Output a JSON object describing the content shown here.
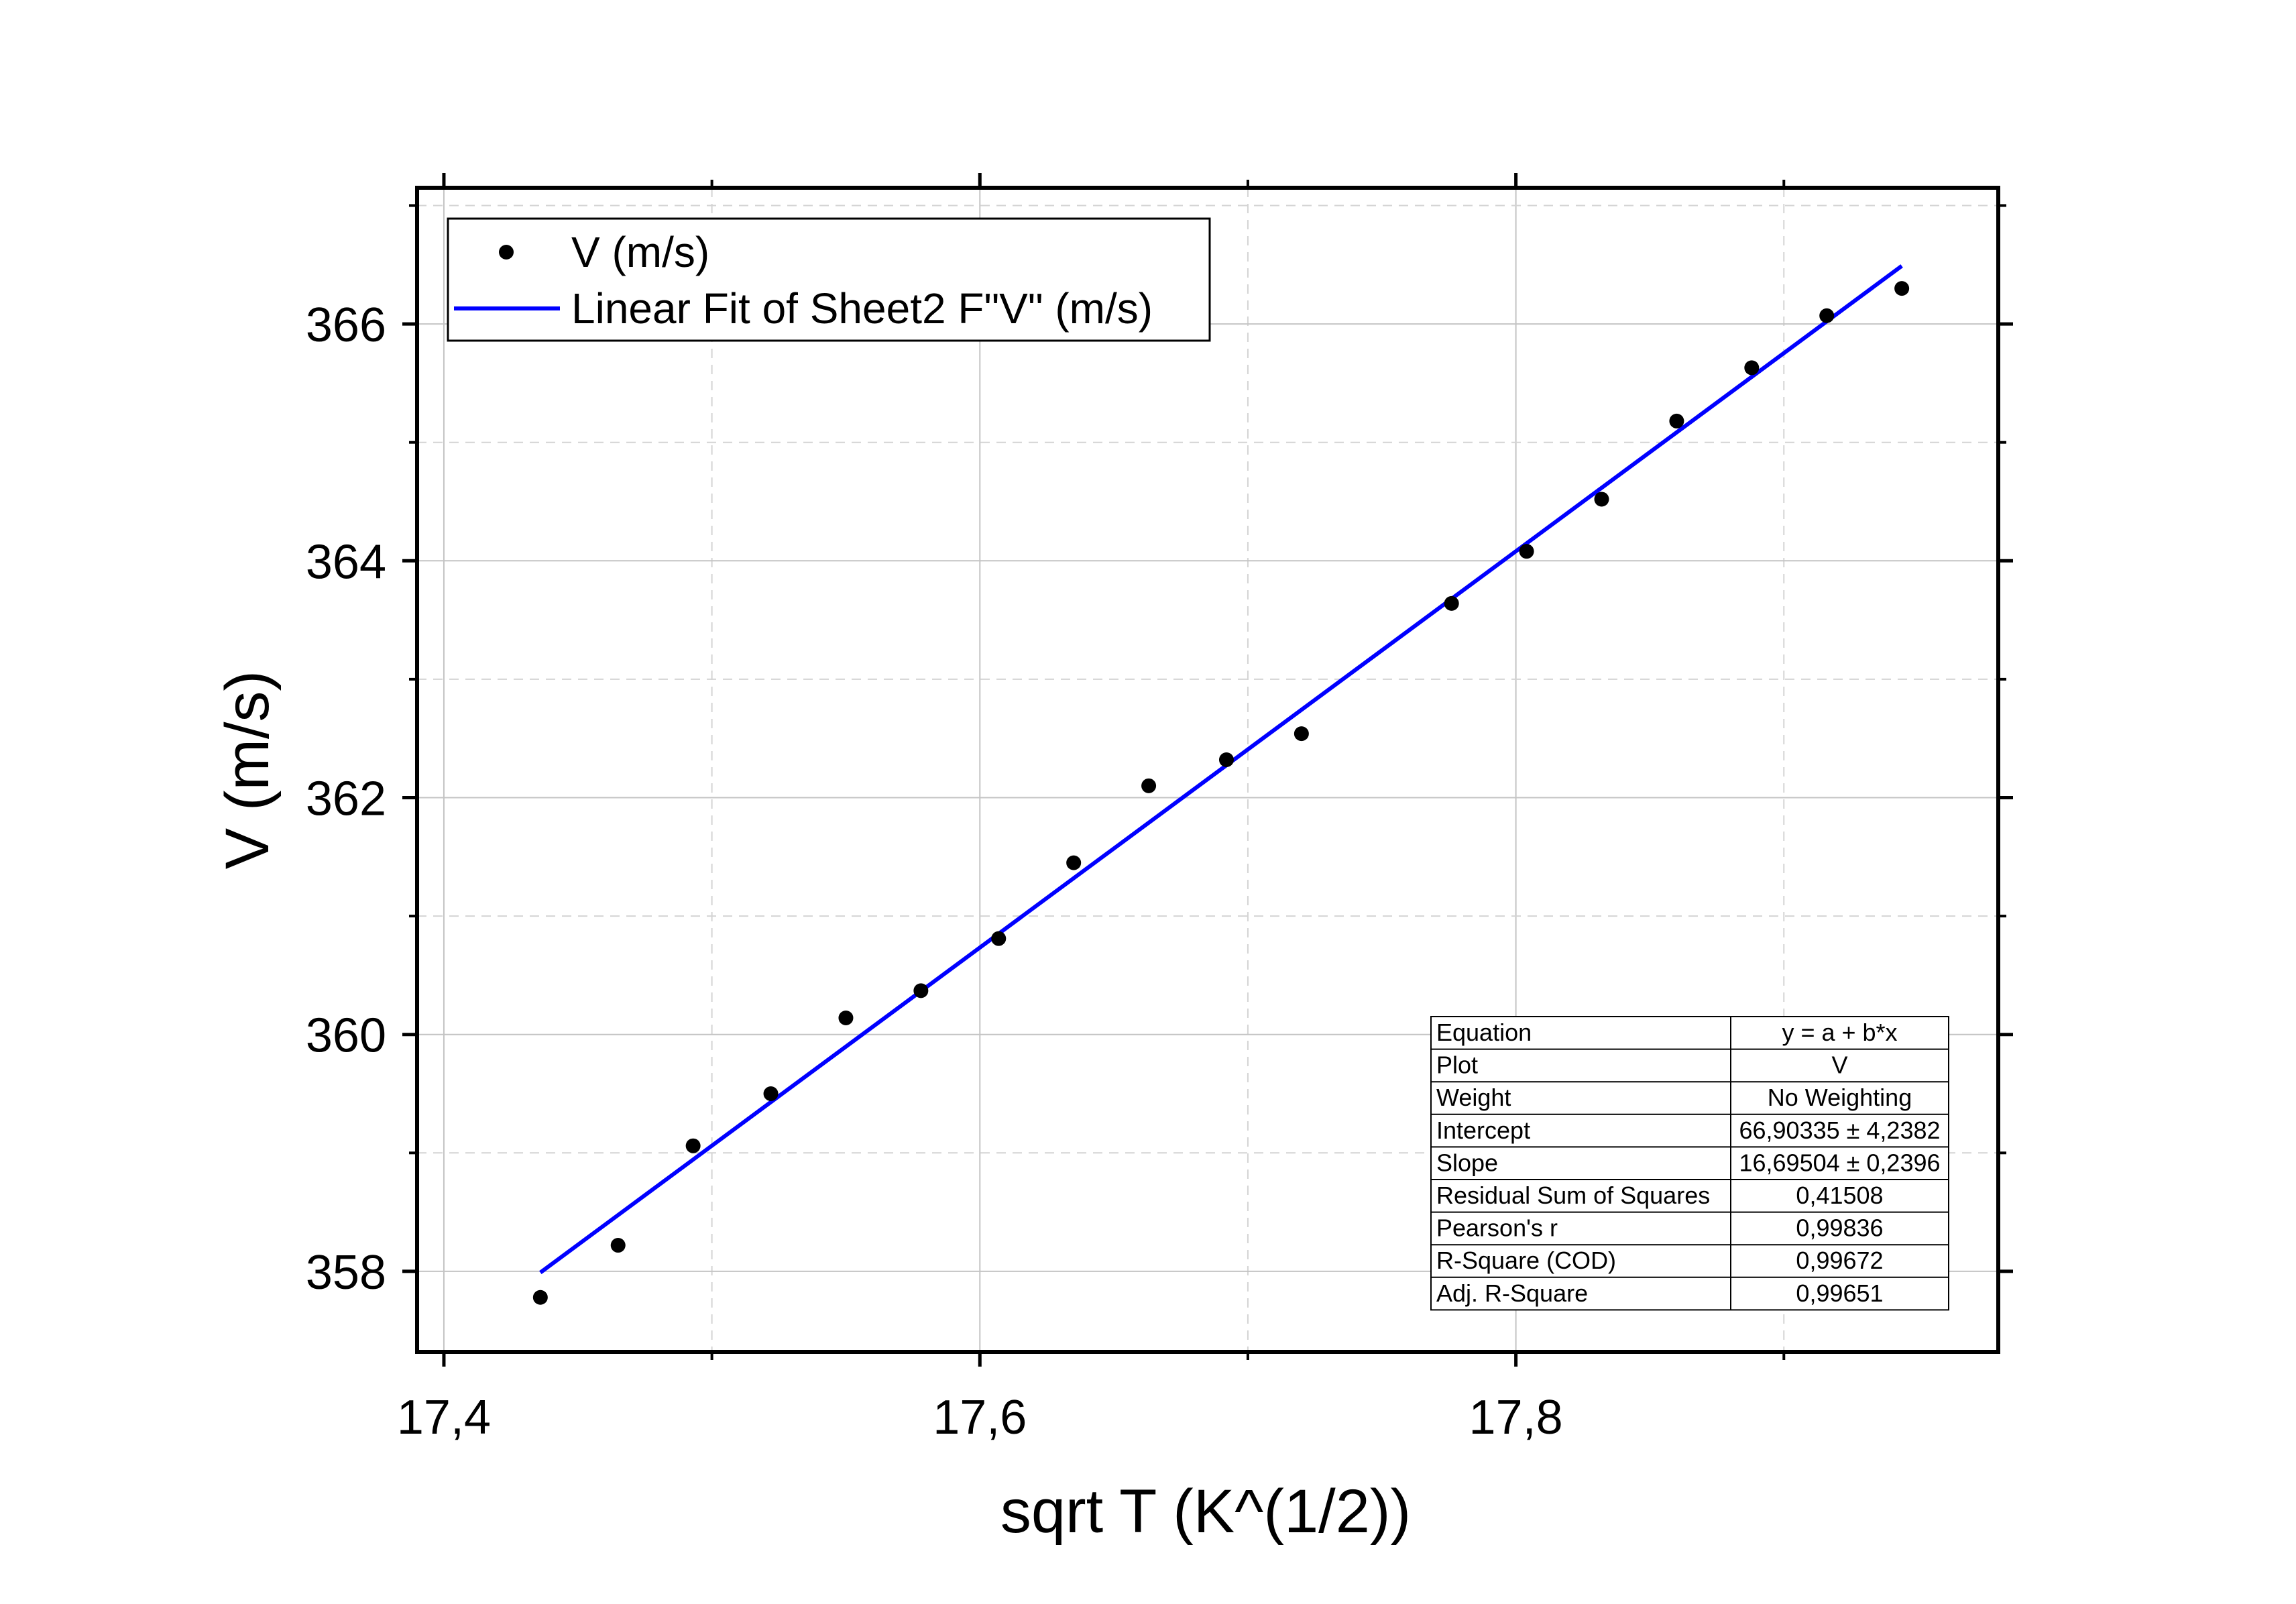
{
  "chart_data": {
    "type": "scatter",
    "xlabel": "sqrt T (K^(1/2))",
    "ylabel": "V (m/s)",
    "xlim": [
      17.39,
      17.98
    ],
    "ylim": [
      357.32,
      367.15
    ],
    "x_ticks": [
      17.4,
      17.6,
      17.8
    ],
    "x_tick_labels": [
      "17,4",
      "17,6",
      "17,8"
    ],
    "y_ticks": [
      358,
      360,
      362,
      364,
      366
    ],
    "y_tick_labels": [
      "358",
      "360",
      "362",
      "364",
      "366"
    ],
    "grid": true,
    "legend_position": "top-left",
    "series": [
      {
        "name": "V (m/s)",
        "style": "points",
        "color": "#000000",
        "x": [
          17.436,
          17.465,
          17.493,
          17.522,
          17.55,
          17.578,
          17.607,
          17.635,
          17.663,
          17.692,
          17.72,
          17.776,
          17.804,
          17.832,
          17.86,
          17.888,
          17.916,
          17.944
        ],
        "y": [
          357.78,
          358.22,
          359.06,
          359.5,
          360.14,
          360.37,
          360.81,
          361.45,
          362.1,
          362.32,
          362.54,
          363.64,
          364.08,
          364.52,
          365.18,
          365.63,
          366.07,
          366.3
        ]
      },
      {
        "name": "Linear Fit of Sheet2 F\"V\" (m/s)",
        "style": "line",
        "color": "#0000ff",
        "x": [
          17.436,
          17.944
        ],
        "y": [
          357.99,
          366.49
        ]
      }
    ],
    "stats_table": {
      "rows": [
        [
          "Equation",
          "y = a + b*x"
        ],
        [
          "Plot",
          "V"
        ],
        [
          "Weight",
          "No Weighting"
        ],
        [
          "Intercept",
          "66,90335 ± 4,2382"
        ],
        [
          "Slope",
          "16,69504 ± 0,2396"
        ],
        [
          "Residual Sum of Squares",
          "0,41508"
        ],
        [
          "Pearson's r",
          "0,99836"
        ],
        [
          "R-Square (COD)",
          "0,99672"
        ],
        [
          "Adj. R-Square",
          "0,99651"
        ]
      ]
    }
  }
}
